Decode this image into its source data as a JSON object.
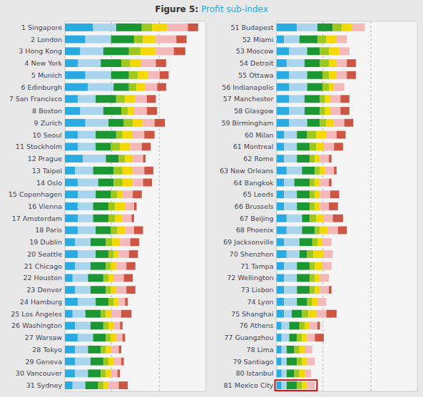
{
  "chart_data": [
    {
      "type": "bar",
      "orientation": "horizontal",
      "stacked": true,
      "grid": false,
      "tick_labels": "y",
      "title": "Figure 5:",
      "subtitle": "Profit sub-index",
      "categories": [
        "1 Singapore",
        "2 London",
        "3 Hong Kong",
        "4 New York",
        "5 Munich",
        "6 Edinburgh",
        "7 San Francisco",
        "8 Boston",
        "9 Zurich",
        "10 Seoul",
        "11 Stockholm",
        "12 Prague",
        "13 Taipei",
        "14 Oslo",
        "15 Copenhagen",
        "16 Vienna",
        "17 Amsterdam",
        "18 Paris",
        "19 Dublin",
        "20 Seattle",
        "21 Chicago",
        "22 Houston",
        "23 Denver",
        "24 Hamburg",
        "25 Los Angeles",
        "26 Washington",
        "27 Warsaw",
        "28 Tokyo",
        "29 Geneva",
        "30 Vancouver",
        "31 Sydney"
      ],
      "series": [
        {
          "color": "#29abe2",
          "values": [
            22,
            16,
            12,
            10,
            16,
            18,
            10,
            12,
            16,
            10,
            10,
            14,
            8,
            10,
            10,
            10,
            10,
            10,
            8,
            10,
            8,
            6,
            8,
            10,
            6,
            8,
            10,
            8,
            8,
            8,
            6
          ]
        },
        {
          "color": "#a8d4ed",
          "values": [
            18,
            20,
            18,
            18,
            20,
            20,
            14,
            18,
            18,
            14,
            14,
            18,
            14,
            16,
            14,
            12,
            12,
            14,
            12,
            14,
            12,
            12,
            12,
            14,
            10,
            12,
            12,
            10,
            12,
            10,
            10
          ]
        },
        {
          "color": "#1a9632",
          "values": [
            20,
            18,
            20,
            16,
            14,
            12,
            16,
            14,
            12,
            16,
            12,
            10,
            16,
            12,
            12,
            12,
            12,
            12,
            12,
            10,
            12,
            12,
            12,
            10,
            12,
            10,
            10,
            10,
            10,
            10,
            10
          ]
        },
        {
          "color": "#9dc81e",
          "values": [
            8,
            7,
            9,
            7,
            7,
            6,
            7,
            5,
            7,
            5,
            7,
            5,
            7,
            7,
            5,
            5,
            5,
            5,
            5,
            4,
            4,
            4,
            4,
            4,
            4,
            4,
            4,
            4,
            4,
            4,
            4
          ]
        },
        {
          "color": "#f5d800",
          "values": [
            12,
            10,
            12,
            8,
            8,
            7,
            8,
            5,
            8,
            8,
            8,
            6,
            8,
            8,
            4,
            8,
            6,
            6,
            6,
            4,
            4,
            4,
            4,
            4,
            4,
            4,
            4,
            4,
            4,
            4,
            4
          ]
        },
        {
          "color": "#f5b8b8",
          "values": [
            16,
            16,
            14,
            12,
            9,
            9,
            9,
            10,
            9,
            9,
            9,
            8,
            9,
            8,
            8,
            7,
            7,
            7,
            8,
            8,
            8,
            8,
            8,
            5,
            8,
            5,
            5,
            6,
            6,
            5,
            8
          ]
        },
        {
          "color": "#cc5544",
          "values": [
            8,
            8,
            9,
            8,
            7,
            7,
            7,
            8,
            8,
            8,
            7,
            2,
            7,
            7,
            7,
            2,
            2,
            7,
            7,
            7,
            7,
            7,
            7,
            2,
            8,
            2,
            2,
            2,
            2,
            2,
            7
          ]
        }
      ],
      "xlim": [
        0,
        110
      ],
      "reference_lines": [
        36.3,
        73.7
      ]
    },
    {
      "type": "bar",
      "orientation": "horizontal",
      "stacked": true,
      "grid": false,
      "tick_labels": "y",
      "categories": [
        "51 Budapest",
        "52 Miami",
        "53 Moscow",
        "54 Detroit",
        "55 Ottawa",
        "56 Indianapolis",
        "57 Manchester",
        "58 Glasgow",
        "59 Birmingham",
        "60 Milan",
        "61 Montreal",
        "62 Rome",
        "63 New Orleans",
        "64 Bangkok",
        "65 Leeds",
        "66 Brussels",
        "67 Beijing",
        "68 Phoenix",
        "69 Jacksonville",
        "70 Shenzhen",
        "71 Tampa",
        "72 Wellington",
        "73 Lisbon",
        "74 Lyon",
        "75 Shanghai",
        "76 Athens",
        "77 Guangzhou",
        "78 Lima",
        "79 Santiago",
        "80 Istanbul",
        "81 Mexico City"
      ],
      "series": [
        {
          "color": "#29abe2",
          "values": [
            16,
            6,
            10,
            8,
            10,
            10,
            10,
            10,
            10,
            6,
            6,
            6,
            8,
            6,
            6,
            6,
            8,
            8,
            6,
            8,
            6,
            6,
            6,
            6,
            6,
            4,
            4,
            4,
            4,
            4,
            4
          ]
        },
        {
          "color": "#a8d4ed",
          "values": [
            16,
            12,
            14,
            14,
            14,
            14,
            12,
            12,
            14,
            10,
            10,
            10,
            12,
            8,
            10,
            10,
            12,
            12,
            12,
            10,
            10,
            10,
            10,
            10,
            6,
            6,
            6,
            4,
            4,
            4,
            4
          ]
        },
        {
          "color": "#1a9632",
          "values": [
            12,
            14,
            10,
            12,
            12,
            12,
            12,
            12,
            10,
            8,
            10,
            10,
            10,
            12,
            10,
            10,
            6,
            10,
            10,
            6,
            10,
            10,
            10,
            8,
            8,
            8,
            6,
            6,
            8,
            6,
            8
          ]
        },
        {
          "color": "#9dc81e",
          "values": [
            7,
            7,
            7,
            7,
            5,
            5,
            4,
            4,
            5,
            7,
            5,
            4,
            4,
            4,
            4,
            4,
            5,
            4,
            4,
            5,
            4,
            4,
            4,
            4,
            5,
            4,
            4,
            4,
            4,
            4,
            4
          ]
        },
        {
          "color": "#f5d800",
          "values": [
            8,
            8,
            8,
            6,
            6,
            4,
            4,
            4,
            6,
            8,
            6,
            4,
            4,
            4,
            4,
            4,
            6,
            6,
            4,
            8,
            6,
            4,
            4,
            4,
            6,
            4,
            4,
            4,
            4,
            4,
            4
          ]
        },
        {
          "color": "#f5b8b8",
          "values": [
            10,
            8,
            8,
            8,
            8,
            8,
            8,
            8,
            8,
            8,
            8,
            7,
            7,
            7,
            8,
            7,
            7,
            8,
            7,
            7,
            7,
            7,
            7,
            7,
            8,
            6,
            6,
            6,
            6,
            5,
            6
          ]
        },
        {
          "color": "#cc5544",
          "values": [
            0,
            0,
            0,
            7,
            7,
            0,
            7,
            7,
            7,
            7,
            7,
            2,
            2,
            2,
            7,
            7,
            8,
            7,
            0,
            0,
            0,
            0,
            2,
            0,
            8,
            2,
            7,
            0,
            0,
            0,
            0
          ]
        }
      ],
      "xlim": [
        0,
        110
      ],
      "reference_lines": [
        36.3,
        73.7
      ],
      "highlight": "81 Mexico City"
    }
  ]
}
